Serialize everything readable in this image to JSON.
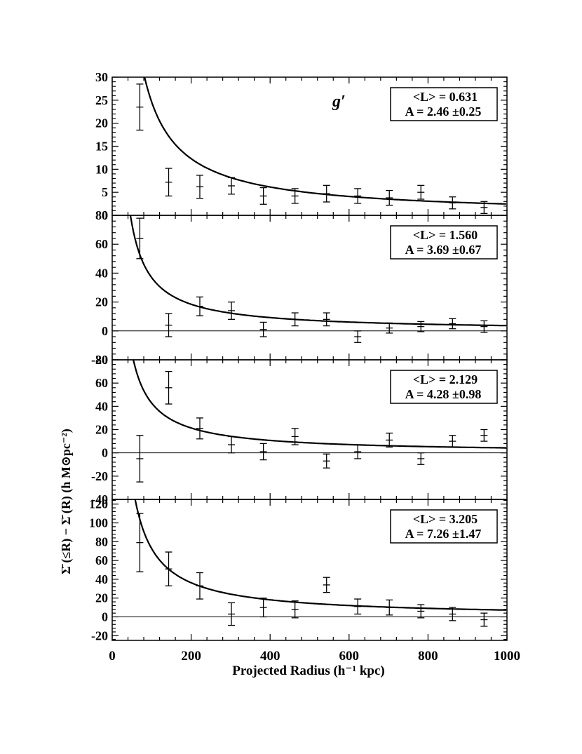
{
  "chart_data": {
    "type": "scatter",
    "xlabel": "Projected Radius (h⁻¹ kpc)",
    "ylabel": "Σ̄ (≤R) − Σ̄ (R) (h M⊙pc⁻²)",
    "xlim": [
      0,
      1000
    ],
    "xticks": [
      "0",
      "200",
      "400",
      "600",
      "800",
      "1000"
    ],
    "band_label": "g′",
    "model": "A / R",
    "panels": [
      {
        "ylim": [
          0,
          30
        ],
        "yticks": [
          0,
          5,
          10,
          15,
          20,
          25,
          30
        ],
        "legend": [
          "<L> = 0.631",
          "A = 2.46 ±0.25"
        ],
        "A": 2.46,
        "zero_line": false,
        "points": [
          {
            "x": 70,
            "y": 23.5,
            "err": 5.0
          },
          {
            "x": 143,
            "y": 7.2,
            "err": 3.0
          },
          {
            "x": 222,
            "y": 6.2,
            "err": 2.5
          },
          {
            "x": 302,
            "y": 6.4,
            "err": 1.8
          },
          {
            "x": 383,
            "y": 4.2,
            "err": 1.8
          },
          {
            "x": 463,
            "y": 4.2,
            "err": 1.6
          },
          {
            "x": 543,
            "y": 4.7,
            "err": 1.8
          },
          {
            "x": 622,
            "y": 4.2,
            "err": 1.6
          },
          {
            "x": 702,
            "y": 3.8,
            "err": 1.6
          },
          {
            "x": 782,
            "y": 5.0,
            "err": 1.5
          },
          {
            "x": 862,
            "y": 2.7,
            "err": 1.3
          },
          {
            "x": 942,
            "y": 1.7,
            "err": 1.3
          }
        ]
      },
      {
        "ylim": [
          -20,
          80
        ],
        "yticks": [
          -20,
          0,
          20,
          40,
          60,
          80
        ],
        "legend": [
          "<L> = 1.560",
          "A = 3.69 ±0.67"
        ],
        "A": 3.69,
        "zero_line": true,
        "points": [
          {
            "x": 70,
            "y": 64,
            "err": 14
          },
          {
            "x": 143,
            "y": 4,
            "err": 8
          },
          {
            "x": 222,
            "y": 17,
            "err": 6.5
          },
          {
            "x": 302,
            "y": 14,
            "err": 6
          },
          {
            "x": 383,
            "y": 1,
            "err": 5
          },
          {
            "x": 463,
            "y": 8,
            "err": 4.5
          },
          {
            "x": 543,
            "y": 8,
            "err": 4.5
          },
          {
            "x": 622,
            "y": -4,
            "err": 4
          },
          {
            "x": 702,
            "y": 2,
            "err": 3.5
          },
          {
            "x": 782,
            "y": 3,
            "err": 3.5
          },
          {
            "x": 862,
            "y": 5,
            "err": 3.5
          },
          {
            "x": 942,
            "y": 3,
            "err": 4
          }
        ]
      },
      {
        "ylim": [
          -40,
          80
        ],
        "yticks": [
          -40,
          -20,
          0,
          20,
          40,
          60,
          80
        ],
        "legend": [
          "<L> = 2.129",
          "A = 4.28 ±0.98"
        ],
        "A": 4.28,
        "zero_line": true,
        "points": [
          {
            "x": 70,
            "y": -5,
            "err": 20
          },
          {
            "x": 143,
            "y": 56,
            "err": 14
          },
          {
            "x": 222,
            "y": 21,
            "err": 9
          },
          {
            "x": 302,
            "y": 7,
            "err": 7
          },
          {
            "x": 383,
            "y": 1,
            "err": 7
          },
          {
            "x": 463,
            "y": 14,
            "err": 7
          },
          {
            "x": 543,
            "y": -7,
            "err": 6
          },
          {
            "x": 622,
            "y": 1,
            "err": 6
          },
          {
            "x": 702,
            "y": 11,
            "err": 6
          },
          {
            "x": 782,
            "y": -5,
            "err": 5
          },
          {
            "x": 862,
            "y": 10,
            "err": 5
          },
          {
            "x": 942,
            "y": 15,
            "err": 5
          }
        ]
      },
      {
        "ylim": [
          -25,
          125
        ],
        "yticks": [
          -20,
          0,
          20,
          40,
          60,
          80,
          100,
          120
        ],
        "legend": [
          "<L> = 3.205",
          "A = 7.26 ±1.47"
        ],
        "A": 7.26,
        "zero_line": true,
        "points": [
          {
            "x": 70,
            "y": 79,
            "err": 31
          },
          {
            "x": 143,
            "y": 51,
            "err": 18
          },
          {
            "x": 222,
            "y": 33,
            "err": 14
          },
          {
            "x": 302,
            "y": 3,
            "err": 12
          },
          {
            "x": 383,
            "y": 10,
            "err": 10
          },
          {
            "x": 463,
            "y": 8,
            "err": 9
          },
          {
            "x": 543,
            "y": 34,
            "err": 8
          },
          {
            "x": 622,
            "y": 11,
            "err": 8
          },
          {
            "x": 702,
            "y": 10,
            "err": 8
          },
          {
            "x": 782,
            "y": 6,
            "err": 7
          },
          {
            "x": 862,
            "y": 3,
            "err": 7
          },
          {
            "x": 942,
            "y": -3,
            "err": 7
          }
        ]
      }
    ]
  }
}
